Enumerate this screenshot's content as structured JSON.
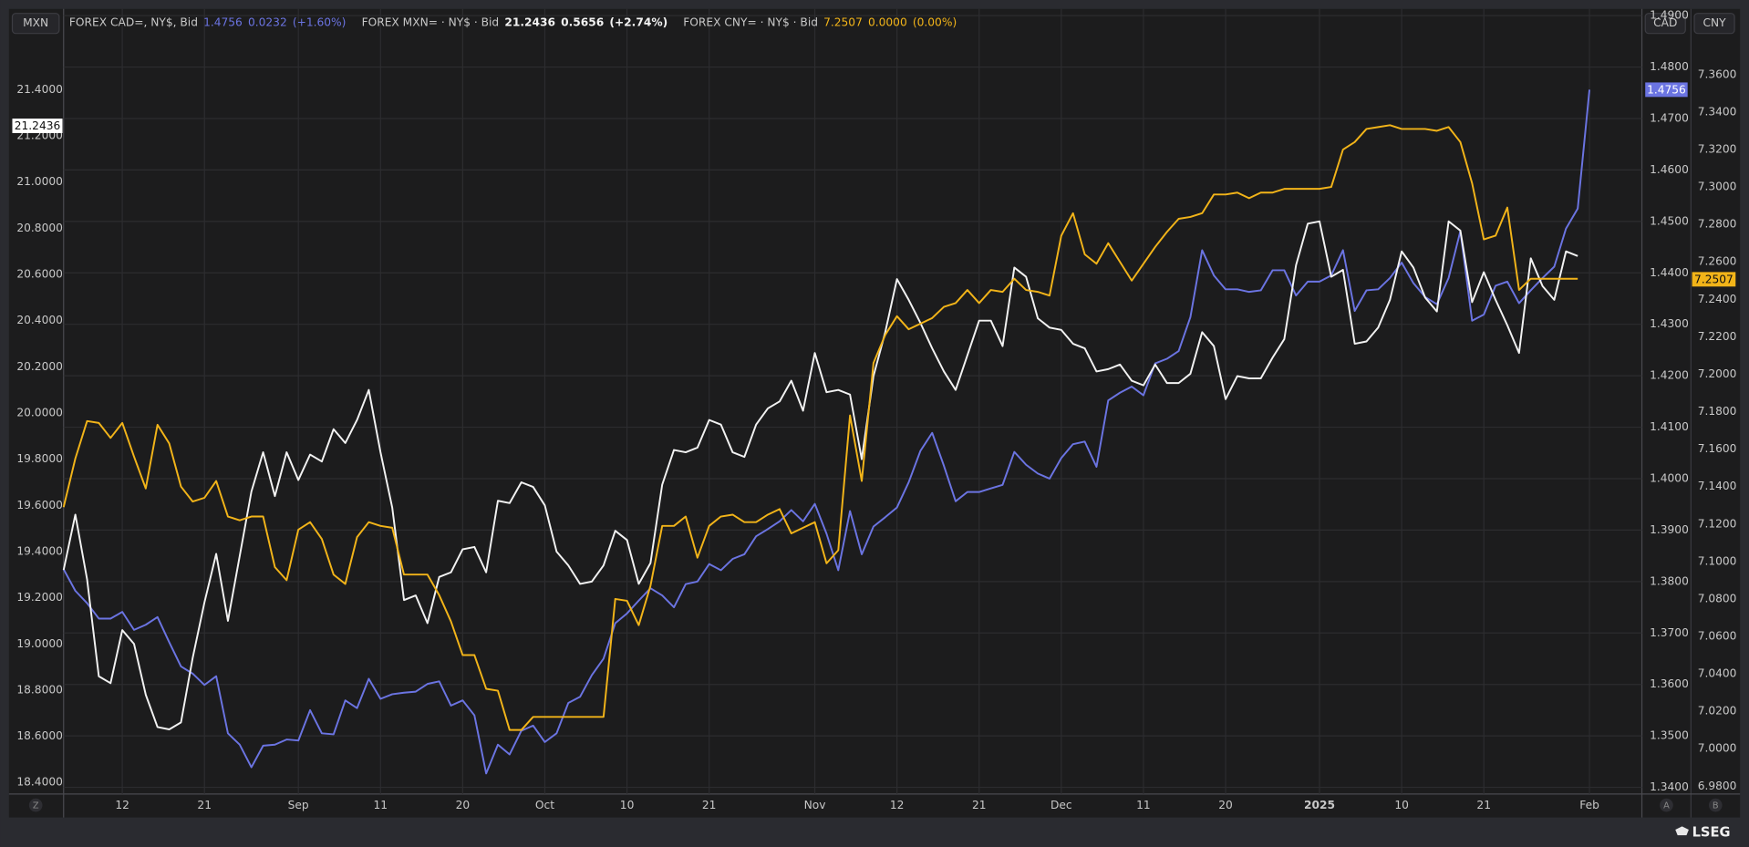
{
  "chart_data": {
    "type": "line",
    "axis_labels": {
      "y": "MXN",
      "y2": "CAD",
      "y3": "CNY"
    },
    "categories": [
      null,
      null,
      null,
      null,
      null,
      "12",
      null,
      null,
      null,
      null,
      null,
      null,
      "21",
      null,
      null,
      null,
      null,
      null,
      null,
      null,
      "Sep",
      null,
      null,
      null,
      null,
      null,
      null,
      "11",
      null,
      null,
      null,
      null,
      null,
      null,
      "20",
      null,
      null,
      null,
      null,
      null,
      null,
      "Oct",
      null,
      null,
      null,
      null,
      null,
      null,
      "10",
      null,
      null,
      null,
      null,
      null,
      null,
      "21",
      null,
      null,
      null,
      null,
      null,
      null,
      null,
      null,
      "Nov",
      null,
      null,
      null,
      null,
      null,
      null,
      "12",
      null,
      null,
      null,
      null,
      null,
      null,
      "21",
      null,
      null,
      null,
      null,
      null,
      null,
      "Dec",
      null,
      null,
      null,
      null,
      null,
      null,
      "11",
      null,
      null,
      null,
      null,
      null,
      null,
      "20",
      null,
      null,
      null,
      null,
      null,
      null,
      null,
      "2025",
      null,
      null,
      null,
      null,
      null,
      null,
      "10",
      null,
      null,
      null,
      null,
      null,
      null,
      "21",
      null,
      null,
      null,
      null,
      null,
      null,
      null,
      null,
      "Feb"
    ],
    "ylim": [
      18.35,
      21.75
    ],
    "yticks": [
      {
        "value": 18.4,
        "label": "18.4000"
      },
      {
        "value": 18.6,
        "label": "18.6000"
      },
      {
        "value": 18.8,
        "label": "18.8000"
      },
      {
        "value": 19.0,
        "label": "19.0000"
      },
      {
        "value": 19.2,
        "label": "19.2000"
      },
      {
        "value": 19.4,
        "label": "19.4000"
      },
      {
        "value": 19.6,
        "label": "19.6000"
      },
      {
        "value": 19.8,
        "label": "19.8000"
      },
      {
        "value": 20.0,
        "label": "20.0000"
      },
      {
        "value": 20.2,
        "label": "20.2000"
      },
      {
        "value": 20.4,
        "label": "20.4000"
      },
      {
        "value": 20.6,
        "label": "20.6000"
      },
      {
        "value": 20.8,
        "label": "20.8000"
      },
      {
        "value": 21.0,
        "label": "21.0000"
      },
      {
        "value": 21.2,
        "label": "21.2000"
      },
      {
        "value": 21.4,
        "label": "21.4000"
      }
    ],
    "y2lim": [
      1.3387,
      1.4913
    ],
    "y2ticks": [
      {
        "value": 1.34,
        "label": "1.3400"
      },
      {
        "value": 1.35,
        "label": "1.3500"
      },
      {
        "value": 1.36,
        "label": "1.3600"
      },
      {
        "value": 1.37,
        "label": "1.3700"
      },
      {
        "value": 1.38,
        "label": "1.3800"
      },
      {
        "value": 1.39,
        "label": "1.3900"
      },
      {
        "value": 1.4,
        "label": "1.4000"
      },
      {
        "value": 1.41,
        "label": "1.4100"
      },
      {
        "value": 1.42,
        "label": "1.4200"
      },
      {
        "value": 1.43,
        "label": "1.4300"
      },
      {
        "value": 1.44,
        "label": "1.4400"
      },
      {
        "value": 1.45,
        "label": "1.4500"
      },
      {
        "value": 1.46,
        "label": "1.4600"
      },
      {
        "value": 1.47,
        "label": "1.4700"
      },
      {
        "value": 1.48,
        "label": "1.4800"
      },
      {
        "value": 1.49,
        "label": "1.4900"
      }
    ],
    "y3lim": [
      6.9758,
      7.3951
    ],
    "y3ticks": [
      {
        "value": 6.98,
        "label": "6.9800"
      },
      {
        "value": 7.0,
        "label": "7.0000"
      },
      {
        "value": 7.02,
        "label": "7.0200"
      },
      {
        "value": 7.04,
        "label": "7.0400"
      },
      {
        "value": 7.06,
        "label": "7.0600"
      },
      {
        "value": 7.08,
        "label": "7.0800"
      },
      {
        "value": 7.1,
        "label": "7.1000"
      },
      {
        "value": 7.12,
        "label": "7.1200"
      },
      {
        "value": 7.14,
        "label": "7.1400"
      },
      {
        "value": 7.16,
        "label": "7.1600"
      },
      {
        "value": 7.18,
        "label": "7.1800"
      },
      {
        "value": 7.2,
        "label": "7.2000"
      },
      {
        "value": 7.22,
        "label": "7.2200"
      },
      {
        "value": 7.24,
        "label": "7.2400"
      },
      {
        "value": 7.26,
        "label": "7.2600"
      },
      {
        "value": 7.28,
        "label": "7.2800"
      },
      {
        "value": 7.3,
        "label": "7.3000"
      },
      {
        "value": 7.32,
        "label": "7.3200"
      },
      {
        "value": 7.34,
        "label": "7.3400"
      },
      {
        "value": 7.36,
        "label": "7.3600"
      }
    ],
    "grid": true,
    "series": [
      {
        "name": "FOREX CAD=, NY$, Bid",
        "color": "#6b74e2",
        "axis": "y2",
        "last": 1.4756,
        "change": 0.0232,
        "change_pct": "(+1.60%)",
        "values": [
          1.3824,
          1.3782,
          1.3758,
          1.3728,
          1.3728,
          1.3741,
          1.3706,
          1.3716,
          1.3731,
          1.3682,
          1.3635,
          1.3621,
          1.3599,
          1.3616,
          1.3505,
          1.3483,
          1.3439,
          1.3481,
          1.3483,
          1.3493,
          1.3491,
          1.355,
          1.3505,
          1.3503,
          1.3569,
          1.3554,
          1.3611,
          1.3572,
          1.3581,
          1.3584,
          1.3586,
          1.3601,
          1.3606,
          1.3559,
          1.3569,
          1.354,
          1.3427,
          1.3483,
          1.3464,
          1.351,
          1.352,
          1.3488,
          1.3505,
          1.3564,
          1.3576,
          1.3618,
          1.365,
          1.3719,
          1.3738,
          1.3763,
          1.3787,
          1.3773,
          1.375,
          1.3795,
          1.38,
          1.3834,
          1.3822,
          1.3844,
          1.3853,
          1.3888,
          1.3902,
          1.3917,
          1.3939,
          1.3917,
          1.3951,
          1.3893,
          1.3822,
          1.3937,
          1.3853,
          1.3907,
          1.3925,
          1.3944,
          1.3993,
          1.4054,
          1.4089,
          1.4025,
          1.3956,
          1.3974,
          1.3974,
          1.3981,
          1.3988,
          1.4052,
          1.4027,
          1.401,
          1.4,
          1.404,
          1.4067,
          1.4072,
          1.4023,
          1.4152,
          1.4167,
          1.4179,
          1.4162,
          1.4224,
          1.4233,
          1.4248,
          1.4314,
          1.4444,
          1.4395,
          1.4368,
          1.4368,
          1.4363,
          1.4366,
          1.4405,
          1.4405,
          1.4356,
          1.4383,
          1.4383,
          1.4395,
          1.4444,
          1.4326,
          1.4366,
          1.4368,
          1.439,
          1.442,
          1.438,
          1.4353,
          1.4339,
          1.439,
          1.4481,
          1.4307,
          1.4319,
          1.4375,
          1.4383,
          1.4341,
          1.4366,
          1.439,
          1.4412,
          1.4486,
          1.4525,
          1.4756
        ]
      },
      {
        "name": "FOREX MXN= · NY$ · Bid",
        "color": "#f2f2f2",
        "axis": "y",
        "last": 21.2436,
        "change": 0.5656,
        "change_pct": "(+2.74%)",
        "values": [
          19.32,
          19.56,
          19.28,
          18.86,
          18.83,
          19.06,
          19.0,
          18.78,
          18.64,
          18.63,
          18.66,
          18.94,
          19.18,
          19.39,
          19.1,
          19.38,
          19.66,
          19.83,
          19.64,
          19.83,
          19.71,
          19.82,
          19.79,
          19.93,
          19.87,
          19.97,
          20.1,
          19.83,
          19.59,
          19.19,
          19.21,
          19.09,
          19.29,
          19.31,
          19.41,
          19.42,
          19.31,
          19.62,
          19.61,
          19.7,
          19.68,
          19.6,
          19.4,
          19.34,
          19.26,
          19.27,
          19.34,
          19.49,
          19.45,
          19.26,
          19.35,
          19.69,
          19.84,
          19.83,
          19.85,
          19.97,
          19.95,
          19.83,
          19.81,
          19.95,
          20.02,
          20.05,
          20.14,
          20.01,
          20.26,
          20.09,
          20.1,
          20.08,
          19.8,
          20.16,
          20.35,
          20.58,
          20.49,
          20.39,
          20.28,
          20.18,
          20.1,
          20.25,
          20.4,
          20.4,
          20.29,
          20.63,
          20.59,
          20.41,
          20.37,
          20.36,
          20.3,
          20.28,
          20.18,
          20.19,
          20.21,
          20.14,
          20.12,
          20.21,
          20.13,
          20.13,
          20.17,
          20.35,
          20.29,
          20.06,
          20.16,
          20.15,
          20.15,
          20.24,
          20.32,
          20.64,
          20.82,
          20.83,
          20.59,
          20.62,
          20.3,
          20.31,
          20.37,
          20.49,
          20.7,
          20.63,
          20.5,
          20.44,
          20.83,
          20.79,
          20.48,
          20.61,
          20.49,
          20.38,
          20.26,
          20.67,
          20.55,
          20.49,
          20.7,
          20.68,
          null
        ]
      },
      {
        "name": "FOREX CNY= · NY$ · Bid",
        "color": "#f2b419",
        "axis": "y3",
        "last": 7.2507,
        "change": "0.0000",
        "change_pct": "(0.00%)",
        "values": [
          7.129,
          7.155,
          7.175,
          7.174,
          7.166,
          7.174,
          7.156,
          7.139,
          7.173,
          7.163,
          7.14,
          7.132,
          7.134,
          7.143,
          7.124,
          7.122,
          7.124,
          7.124,
          7.097,
          7.09,
          7.117,
          7.121,
          7.112,
          7.093,
          7.088,
          7.113,
          7.121,
          7.119,
          7.118,
          7.093,
          7.093,
          7.093,
          7.082,
          7.068,
          7.05,
          7.05,
          7.032,
          7.031,
          7.01,
          7.01,
          7.017,
          7.017,
          7.017,
          7.017,
          7.017,
          7.017,
          7.017,
          7.08,
          7.079,
          7.066,
          7.087,
          7.119,
          7.119,
          7.124,
          7.102,
          7.119,
          7.124,
          7.125,
          7.121,
          7.121,
          7.125,
          7.128,
          7.115,
          7.118,
          7.121,
          7.099,
          7.106,
          7.178,
          7.143,
          7.206,
          7.221,
          7.231,
          7.224,
          7.227,
          7.23,
          7.236,
          7.238,
          7.245,
          7.238,
          7.245,
          7.244,
          7.251,
          7.245,
          7.244,
          7.242,
          7.274,
          7.286,
          7.264,
          7.259,
          7.27,
          7.26,
          7.25,
          7.259,
          7.268,
          7.276,
          7.283,
          7.284,
          7.286,
          7.296,
          7.296,
          7.297,
          7.294,
          7.297,
          7.297,
          7.299,
          7.299,
          7.299,
          7.299,
          7.3,
          7.32,
          7.324,
          7.331,
          7.332,
          7.333,
          7.331,
          7.331,
          7.331,
          7.33,
          7.332,
          7.324,
          7.302,
          7.272,
          7.274,
          7.289,
          7.245,
          7.251,
          7.251,
          7.251,
          7.251,
          7.251,
          null
        ]
      }
    ]
  },
  "buttons": [
    "Z",
    "A",
    "B"
  ],
  "logo": "LSEG"
}
